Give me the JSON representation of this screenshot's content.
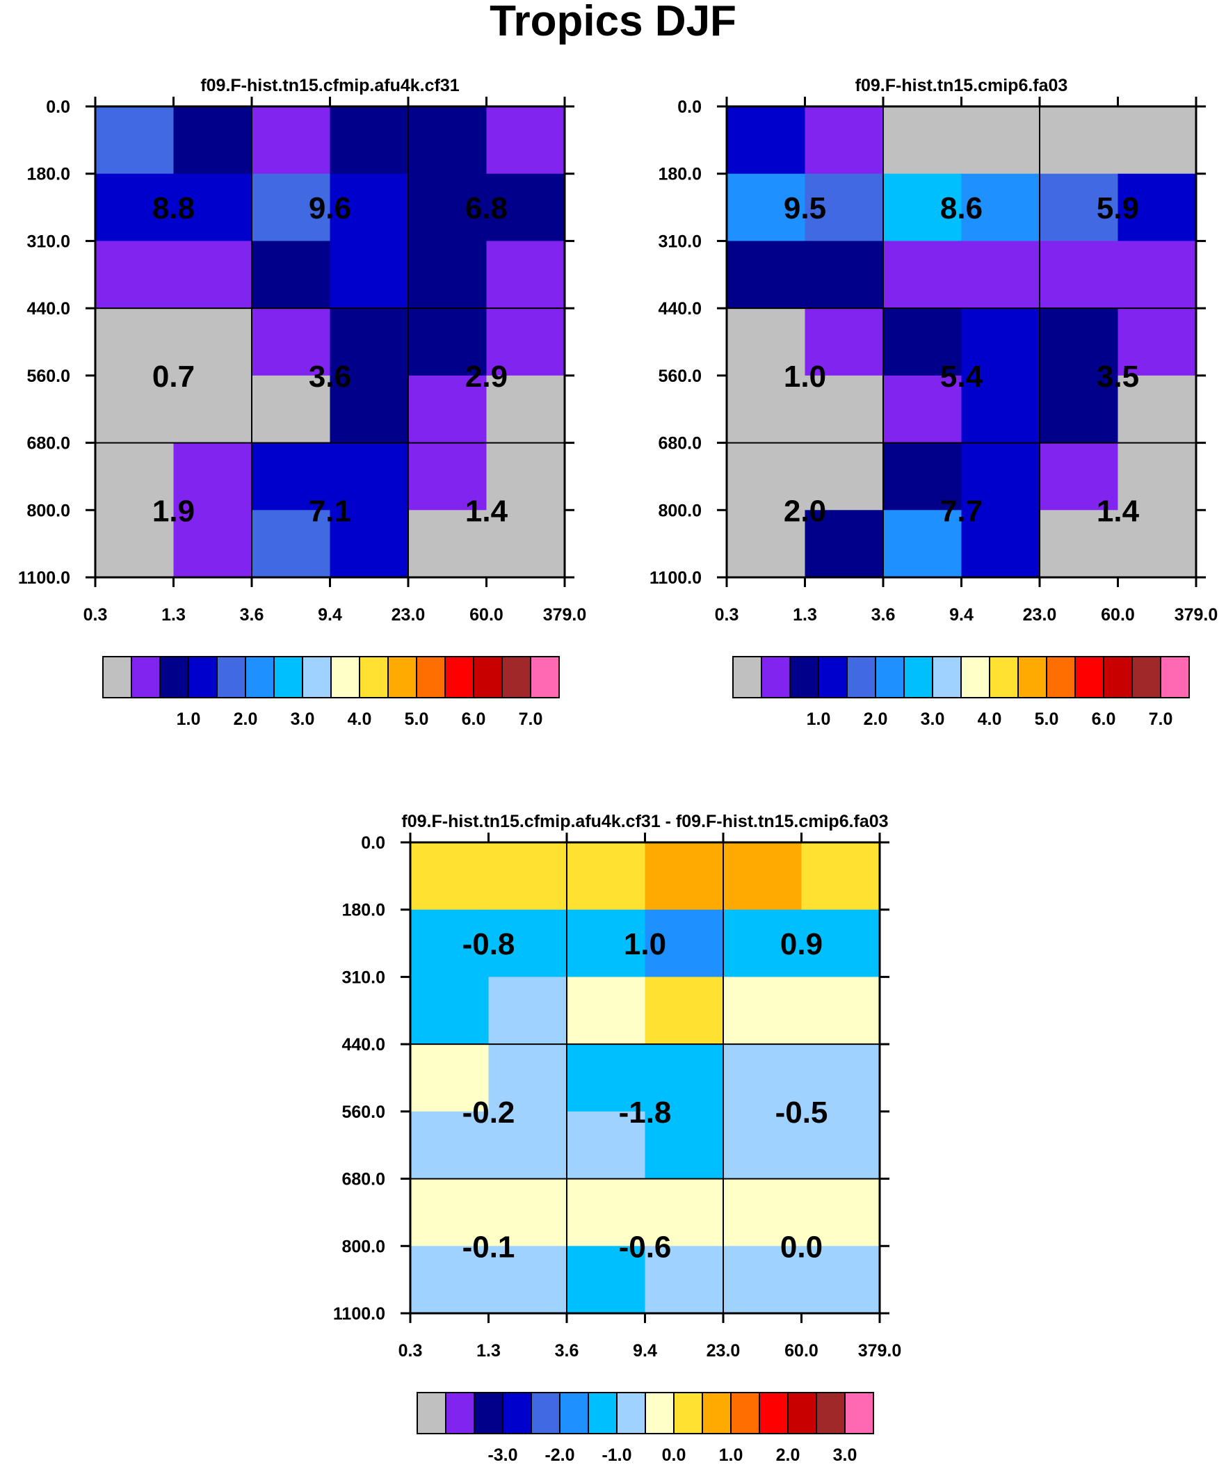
{
  "figure_title": "Tropics DJF",
  "palette": [
    "#c0c0c0",
    "#8224f0",
    "#00008b",
    "#0000cd",
    "#4169e1",
    "#1e90ff",
    "#00bfff",
    "#a0d2ff",
    "#ffffc8",
    "#ffe132",
    "#ffaa00",
    "#ff6e00",
    "#ff0000",
    "#c80000",
    "#a02828",
    "#ff69b4"
  ],
  "chart_data": [
    {
      "type": "heatmap",
      "title": "f09.F-hist.tn15.cfmip.afu4k.cf31",
      "x_ticks": [
        "0.3",
        "1.3",
        "3.6",
        "9.4",
        "23.0",
        "60.0",
        "379.0"
      ],
      "y_ticks": [
        "0.0",
        "180.0",
        "310.0",
        "440.0",
        "560.0",
        "680.0",
        "800.0",
        "1100.0"
      ],
      "cells": [
        [
          4,
          2,
          1,
          2,
          2,
          1
        ],
        [
          3,
          3,
          4,
          3,
          2,
          2
        ],
        [
          1,
          1,
          2,
          3,
          2,
          1
        ],
        [
          0,
          0,
          1,
          2,
          2,
          1
        ],
        [
          0,
          0,
          0,
          2,
          1,
          0
        ],
        [
          0,
          1,
          3,
          3,
          1,
          0
        ],
        [
          0,
          1,
          4,
          3,
          0,
          0
        ]
      ],
      "box_labels": [
        [
          "8.8",
          "9.6",
          "6.8"
        ],
        [
          "0.7",
          "3.6",
          "2.9"
        ],
        [
          "1.9",
          "7.1",
          "1.4"
        ]
      ],
      "colorbar_labels": [
        "1.0",
        "2.0",
        "3.0",
        "4.0",
        "5.0",
        "6.0",
        "7.0"
      ]
    },
    {
      "type": "heatmap",
      "title": "f09.F-hist.tn15.cmip6.fa03",
      "x_ticks": [
        "0.3",
        "1.3",
        "3.6",
        "9.4",
        "23.0",
        "60.0",
        "379.0"
      ],
      "y_ticks": [
        "0.0",
        "180.0",
        "310.0",
        "440.0",
        "560.0",
        "680.0",
        "800.0",
        "1100.0"
      ],
      "cells": [
        [
          3,
          1,
          0,
          0,
          0,
          0
        ],
        [
          5,
          4,
          6,
          5,
          4,
          3
        ],
        [
          2,
          2,
          1,
          1,
          1,
          1
        ],
        [
          0,
          1,
          2,
          3,
          2,
          1
        ],
        [
          0,
          0,
          1,
          3,
          2,
          0
        ],
        [
          0,
          0,
          2,
          3,
          1,
          0
        ],
        [
          0,
          2,
          5,
          3,
          0,
          0
        ]
      ],
      "box_labels": [
        [
          "9.5",
          "8.6",
          "5.9"
        ],
        [
          "1.0",
          "5.4",
          "3.5"
        ],
        [
          "2.0",
          "7.7",
          "1.4"
        ]
      ],
      "colorbar_labels": [
        "1.0",
        "2.0",
        "3.0",
        "4.0",
        "5.0",
        "6.0",
        "7.0"
      ]
    },
    {
      "type": "heatmap",
      "title": "f09.F-hist.tn15.cfmip.afu4k.cf31 - f09.F-hist.tn15.cmip6.fa03",
      "x_ticks": [
        "0.3",
        "1.3",
        "3.6",
        "9.4",
        "23.0",
        "60.0",
        "379.0"
      ],
      "y_ticks": [
        "0.0",
        "180.0",
        "310.0",
        "440.0",
        "560.0",
        "680.0",
        "800.0",
        "1100.0"
      ],
      "cells": [
        [
          9,
          9,
          9,
          10,
          10,
          9
        ],
        [
          6,
          6,
          6,
          5,
          6,
          6
        ],
        [
          6,
          7,
          8,
          9,
          8,
          8
        ],
        [
          8,
          7,
          6,
          6,
          7,
          7
        ],
        [
          7,
          7,
          7,
          6,
          7,
          7
        ],
        [
          8,
          8,
          8,
          8,
          8,
          8
        ],
        [
          7,
          7,
          6,
          7,
          7,
          7
        ]
      ],
      "box_labels": [
        [
          "-0.8",
          "1.0",
          "0.9"
        ],
        [
          "-0.2",
          "-1.8",
          "-0.5"
        ],
        [
          "-0.1",
          "-0.6",
          "0.0"
        ]
      ],
      "colorbar_labels": [
        "-3.0",
        "-2.0",
        "-1.0",
        "0.0",
        "1.0",
        "2.0",
        "3.0"
      ]
    }
  ]
}
